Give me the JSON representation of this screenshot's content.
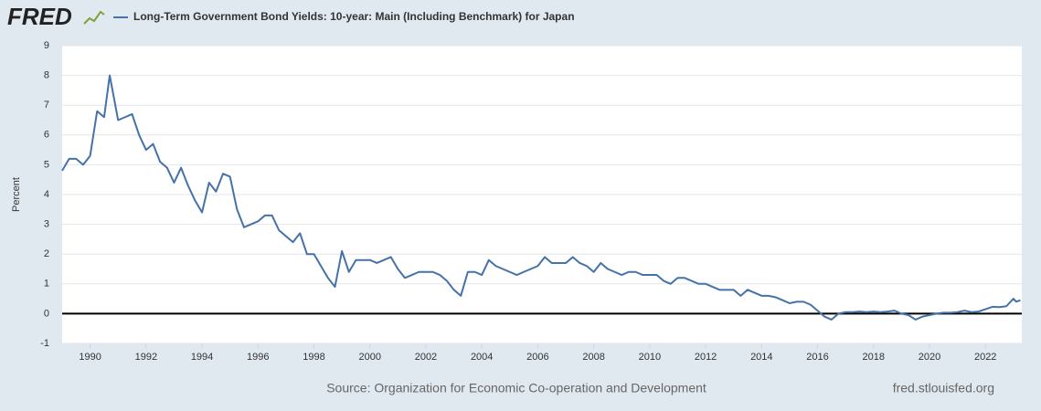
{
  "logo": "FRED",
  "chart_data": {
    "type": "line",
    "title": "Long-Term Government Bond Yields: 10-year: Main (Including Benchmark) for Japan",
    "y_label": "Percent",
    "source": "Source: Organization for Economic Co-operation and Development",
    "site": "fred.stlouisfed.org",
    "xlim": [
      1989,
      2023.3
    ],
    "xticks": [
      1990,
      1992,
      1994,
      1996,
      1998,
      2000,
      2002,
      2004,
      2006,
      2008,
      2010,
      2012,
      2014,
      2016,
      2018,
      2020,
      2022
    ],
    "ylim": [
      -1,
      9
    ],
    "yticks": [
      -1,
      0,
      1,
      2,
      3,
      4,
      5,
      6,
      7,
      8,
      9
    ],
    "grid": true,
    "zero_line": true,
    "x": [
      1989.0,
      1989.25,
      1989.5,
      1989.75,
      1990.0,
      1990.25,
      1990.5,
      1990.7,
      1991.0,
      1991.25,
      1991.5,
      1991.75,
      1992.0,
      1992.25,
      1992.5,
      1992.75,
      1993.0,
      1993.25,
      1993.5,
      1993.75,
      1994.0,
      1994.25,
      1994.5,
      1994.75,
      1995.0,
      1995.25,
      1995.5,
      1995.75,
      1996.0,
      1996.25,
      1996.5,
      1996.75,
      1997.0,
      1997.25,
      1997.5,
      1997.75,
      1998.0,
      1998.25,
      1998.5,
      1998.75,
      1999.0,
      1999.25,
      1999.5,
      1999.75,
      2000.0,
      2000.25,
      2000.5,
      2000.75,
      2001.0,
      2001.25,
      2001.5,
      2001.75,
      2002.0,
      2002.25,
      2002.5,
      2002.75,
      2003.0,
      2003.25,
      2003.5,
      2003.75,
      2004.0,
      2004.25,
      2004.5,
      2004.75,
      2005.0,
      2005.25,
      2005.5,
      2005.75,
      2006.0,
      2006.25,
      2006.5,
      2006.75,
      2007.0,
      2007.25,
      2007.5,
      2007.75,
      2008.0,
      2008.25,
      2008.5,
      2008.75,
      2009.0,
      2009.25,
      2009.5,
      2009.75,
      2010.0,
      2010.25,
      2010.5,
      2010.75,
      2011.0,
      2011.25,
      2011.5,
      2011.75,
      2012.0,
      2012.25,
      2012.5,
      2012.75,
      2013.0,
      2013.25,
      2013.5,
      2013.75,
      2014.0,
      2014.25,
      2014.5,
      2014.75,
      2015.0,
      2015.25,
      2015.5,
      2015.75,
      2016.0,
      2016.25,
      2016.5,
      2016.75,
      2017.0,
      2017.25,
      2017.5,
      2017.75,
      2018.0,
      2018.25,
      2018.5,
      2018.75,
      2019.0,
      2019.25,
      2019.5,
      2019.75,
      2020.0,
      2020.25,
      2020.5,
      2020.75,
      2021.0,
      2021.25,
      2021.5,
      2021.75,
      2022.0,
      2022.25,
      2022.5,
      2022.75,
      2023.0,
      2023.1,
      2023.25
    ],
    "series": [
      {
        "name": "Long-Term Government Bond Yields: 10-year: Main (Including Benchmark) for Japan",
        "color": "#4572a7",
        "values": [
          4.8,
          5.2,
          5.2,
          5.0,
          5.3,
          6.8,
          6.6,
          8.0,
          6.5,
          6.6,
          6.7,
          6.0,
          5.5,
          5.7,
          5.1,
          4.9,
          4.4,
          4.9,
          4.3,
          3.8,
          3.4,
          4.4,
          4.1,
          4.7,
          4.6,
          3.5,
          2.9,
          3.0,
          3.1,
          3.3,
          3.3,
          2.8,
          2.6,
          2.4,
          2.7,
          2.0,
          2.0,
          1.6,
          1.2,
          0.9,
          2.1,
          1.4,
          1.8,
          1.8,
          1.8,
          1.7,
          1.8,
          1.9,
          1.5,
          1.2,
          1.3,
          1.4,
          1.4,
          1.4,
          1.3,
          1.1,
          0.8,
          0.6,
          1.4,
          1.4,
          1.3,
          1.8,
          1.6,
          1.5,
          1.4,
          1.3,
          1.4,
          1.5,
          1.6,
          1.9,
          1.7,
          1.7,
          1.7,
          1.9,
          1.7,
          1.6,
          1.4,
          1.7,
          1.5,
          1.4,
          1.3,
          1.4,
          1.4,
          1.3,
          1.3,
          1.3,
          1.1,
          1.0,
          1.2,
          1.2,
          1.1,
          1.0,
          1.0,
          0.9,
          0.8,
          0.8,
          0.8,
          0.6,
          0.8,
          0.7,
          0.6,
          0.6,
          0.55,
          0.45,
          0.35,
          0.4,
          0.4,
          0.3,
          0.1,
          -0.1,
          -0.2,
          0.0,
          0.05,
          0.05,
          0.07,
          0.05,
          0.07,
          0.05,
          0.07,
          0.1,
          0.0,
          -0.05,
          -0.2,
          -0.1,
          -0.05,
          0.0,
          0.03,
          0.03,
          0.05,
          0.1,
          0.05,
          0.07,
          0.15,
          0.23,
          0.22,
          0.25,
          0.5,
          0.4,
          0.45
        ]
      }
    ]
  }
}
